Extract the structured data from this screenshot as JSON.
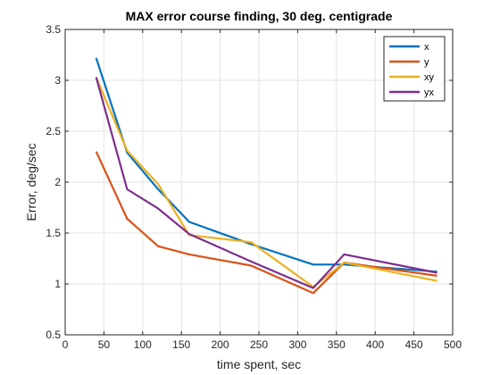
{
  "chart_data": {
    "type": "line",
    "title": "MAX error course finding, 30 deg. centigrade",
    "xlabel": "time spent, sec",
    "ylabel": "Error, deg/sec",
    "xlim": [
      0,
      500
    ],
    "ylim": [
      0.5,
      3.5
    ],
    "xticks": [
      "0",
      "50",
      "100",
      "150",
      "200",
      "250",
      "300",
      "350",
      "400",
      "450",
      "500"
    ],
    "yticks": [
      "0.5",
      "1",
      "1.5",
      "2",
      "2.5",
      "3",
      "3.5"
    ],
    "grid": true,
    "legend_position": "top-right",
    "series": [
      {
        "name": "x",
        "color": "#0072BD",
        "x": [
          40,
          80,
          120,
          160,
          240,
          320,
          360,
          480
        ],
        "y": [
          3.22,
          2.29,
          1.93,
          1.61,
          1.39,
          1.19,
          1.19,
          1.12
        ]
      },
      {
        "name": "y",
        "color": "#D95319",
        "x": [
          40,
          80,
          120,
          160,
          240,
          320,
          360,
          480
        ],
        "y": [
          2.3,
          1.64,
          1.37,
          1.29,
          1.18,
          0.91,
          1.21,
          1.08
        ]
      },
      {
        "name": "xy",
        "color": "#EDB120",
        "x": [
          40,
          80,
          120,
          160,
          240,
          320,
          360,
          480
        ],
        "y": [
          3.03,
          2.31,
          1.98,
          1.48,
          1.41,
          0.97,
          1.21,
          1.03
        ]
      },
      {
        "name": "yx",
        "color": "#7E2F8E",
        "x": [
          40,
          80,
          120,
          160,
          240,
          320,
          360,
          480
        ],
        "y": [
          3.03,
          1.93,
          1.74,
          1.49,
          1.22,
          0.96,
          1.29,
          1.11
        ]
      }
    ]
  }
}
